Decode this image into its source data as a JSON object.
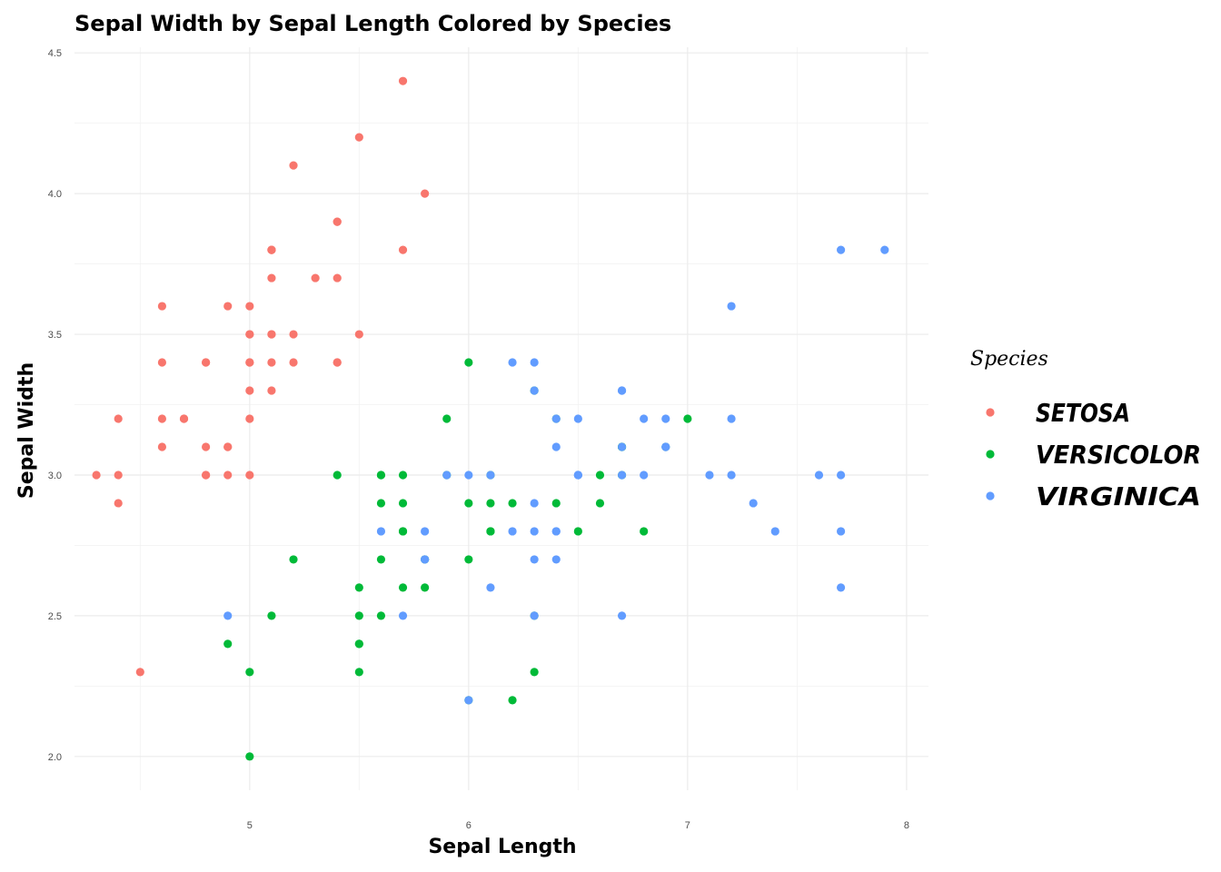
{
  "chart_data": {
    "type": "scatter",
    "title": "Sepal Width by Sepal Length Colored by Species",
    "xlabel": "Sepal Length",
    "ylabel": "Sepal Width",
    "xlim": [
      4.2,
      8.1
    ],
    "ylim": [
      1.88,
      4.52
    ],
    "x_ticks": [
      5,
      6,
      7,
      8
    ],
    "y_ticks": [
      2.0,
      2.5,
      3.0,
      3.5,
      4.0,
      4.5
    ],
    "x_tick_labels": [
      "5",
      "6",
      "7",
      "8"
    ],
    "y_tick_labels": [
      "2.0",
      "2.5",
      "3.0",
      "3.5",
      "4.0",
      "4.5"
    ],
    "grid": true,
    "legend": {
      "title": "Species",
      "position": "right"
    },
    "series": [
      {
        "name": "SETOSA",
        "color": "#F8766D",
        "points": [
          [
            5.1,
            3.5
          ],
          [
            4.9,
            3.0
          ],
          [
            4.7,
            3.2
          ],
          [
            4.6,
            3.1
          ],
          [
            5.0,
            3.6
          ],
          [
            5.4,
            3.9
          ],
          [
            4.6,
            3.4
          ],
          [
            5.0,
            3.4
          ],
          [
            4.4,
            2.9
          ],
          [
            4.9,
            3.1
          ],
          [
            5.4,
            3.7
          ],
          [
            4.8,
            3.4
          ],
          [
            4.8,
            3.0
          ],
          [
            4.3,
            3.0
          ],
          [
            5.8,
            4.0
          ],
          [
            5.7,
            4.4
          ],
          [
            5.4,
            3.9
          ],
          [
            5.1,
            3.5
          ],
          [
            5.7,
            3.8
          ],
          [
            5.1,
            3.8
          ],
          [
            5.4,
            3.4
          ],
          [
            5.1,
            3.7
          ],
          [
            4.6,
            3.6
          ],
          [
            5.1,
            3.3
          ],
          [
            4.8,
            3.4
          ],
          [
            5.0,
            3.0
          ],
          [
            5.0,
            3.4
          ],
          [
            5.2,
            3.5
          ],
          [
            5.2,
            3.4
          ],
          [
            4.7,
            3.2
          ],
          [
            4.8,
            3.1
          ],
          [
            5.4,
            3.4
          ],
          [
            5.2,
            4.1
          ],
          [
            5.5,
            4.2
          ],
          [
            4.9,
            3.1
          ],
          [
            5.0,
            3.2
          ],
          [
            5.5,
            3.5
          ],
          [
            4.9,
            3.6
          ],
          [
            4.4,
            3.0
          ],
          [
            5.1,
            3.4
          ],
          [
            5.0,
            3.5
          ],
          [
            4.5,
            2.3
          ],
          [
            4.4,
            3.2
          ],
          [
            5.0,
            3.5
          ],
          [
            5.1,
            3.8
          ],
          [
            4.8,
            3.0
          ],
          [
            5.1,
            3.8
          ],
          [
            4.6,
            3.2
          ],
          [
            5.3,
            3.7
          ],
          [
            5.0,
            3.3
          ]
        ]
      },
      {
        "name": "VERSICOLOR",
        "color": "#00BA38",
        "points": [
          [
            7.0,
            3.2
          ],
          [
            6.4,
            3.2
          ],
          [
            6.9,
            3.1
          ],
          [
            5.5,
            2.3
          ],
          [
            6.5,
            2.8
          ],
          [
            5.7,
            2.8
          ],
          [
            6.3,
            3.3
          ],
          [
            4.9,
            2.4
          ],
          [
            6.6,
            2.9
          ],
          [
            5.2,
            2.7
          ],
          [
            5.0,
            2.0
          ],
          [
            5.9,
            3.0
          ],
          [
            6.0,
            2.2
          ],
          [
            6.1,
            2.9
          ],
          [
            5.6,
            2.9
          ],
          [
            6.7,
            3.1
          ],
          [
            5.6,
            3.0
          ],
          [
            5.8,
            2.7
          ],
          [
            6.2,
            2.2
          ],
          [
            5.6,
            2.5
          ],
          [
            5.9,
            3.2
          ],
          [
            6.1,
            2.8
          ],
          [
            6.3,
            2.5
          ],
          [
            6.1,
            2.8
          ],
          [
            6.4,
            2.9
          ],
          [
            6.6,
            3.0
          ],
          [
            6.8,
            2.8
          ],
          [
            6.7,
            3.0
          ],
          [
            6.0,
            2.9
          ],
          [
            5.7,
            2.6
          ],
          [
            5.5,
            2.4
          ],
          [
            5.5,
            2.4
          ],
          [
            5.8,
            2.7
          ],
          [
            6.0,
            2.7
          ],
          [
            5.4,
            3.0
          ],
          [
            6.0,
            3.4
          ],
          [
            6.7,
            3.1
          ],
          [
            6.3,
            2.3
          ],
          [
            5.6,
            3.0
          ],
          [
            5.5,
            2.5
          ],
          [
            5.5,
            2.6
          ],
          [
            6.1,
            3.0
          ],
          [
            5.8,
            2.6
          ],
          [
            5.0,
            2.3
          ],
          [
            5.6,
            2.7
          ],
          [
            5.7,
            3.0
          ],
          [
            5.7,
            2.9
          ],
          [
            6.2,
            2.9
          ],
          [
            5.1,
            2.5
          ],
          [
            5.7,
            2.8
          ]
        ]
      },
      {
        "name": "VIRGINICA",
        "color": "#619CFF",
        "points": [
          [
            6.3,
            3.3
          ],
          [
            5.8,
            2.7
          ],
          [
            7.1,
            3.0
          ],
          [
            6.3,
            2.9
          ],
          [
            6.5,
            3.0
          ],
          [
            7.6,
            3.0
          ],
          [
            4.9,
            2.5
          ],
          [
            7.3,
            2.9
          ],
          [
            6.7,
            2.5
          ],
          [
            7.2,
            3.6
          ],
          [
            6.5,
            3.2
          ],
          [
            6.4,
            2.7
          ],
          [
            6.8,
            3.0
          ],
          [
            5.7,
            2.5
          ],
          [
            5.8,
            2.8
          ],
          [
            6.4,
            3.2
          ],
          [
            6.5,
            3.0
          ],
          [
            7.7,
            3.8
          ],
          [
            7.7,
            2.6
          ],
          [
            6.0,
            2.2
          ],
          [
            6.9,
            3.2
          ],
          [
            5.6,
            2.8
          ],
          [
            7.7,
            2.8
          ],
          [
            6.3,
            2.7
          ],
          [
            6.7,
            3.3
          ],
          [
            7.2,
            3.2
          ],
          [
            6.2,
            2.8
          ],
          [
            6.1,
            3.0
          ],
          [
            6.4,
            2.8
          ],
          [
            7.2,
            3.0
          ],
          [
            7.4,
            2.8
          ],
          [
            7.9,
            3.8
          ],
          [
            6.4,
            2.8
          ],
          [
            6.3,
            2.8
          ],
          [
            6.1,
            2.6
          ],
          [
            7.7,
            3.0
          ],
          [
            6.3,
            3.4
          ],
          [
            6.4,
            3.1
          ],
          [
            6.0,
            3.0
          ],
          [
            6.9,
            3.1
          ],
          [
            6.7,
            3.1
          ],
          [
            6.9,
            3.1
          ],
          [
            5.8,
            2.7
          ],
          [
            6.8,
            3.2
          ],
          [
            6.7,
            3.3
          ],
          [
            6.7,
            3.0
          ],
          [
            6.3,
            2.5
          ],
          [
            6.5,
            3.0
          ],
          [
            6.2,
            3.4
          ],
          [
            5.9,
            3.0
          ]
        ]
      }
    ]
  }
}
